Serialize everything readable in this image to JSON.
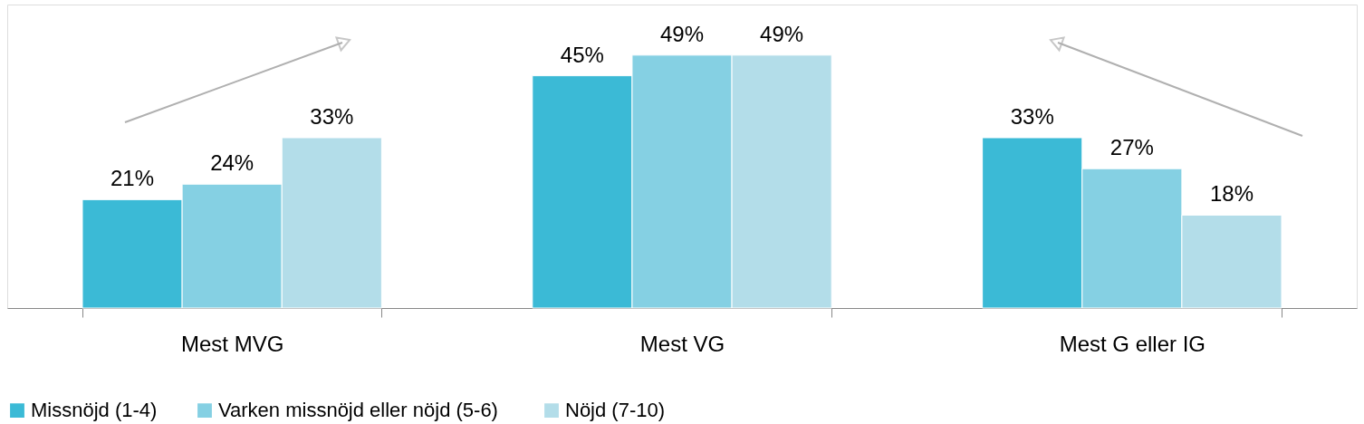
{
  "chart_data": {
    "type": "bar",
    "categories": [
      "Mest MVG",
      "Mest VG",
      "Mest G eller IG"
    ],
    "series": [
      {
        "name": "Missnöjd (1-4)",
        "color": "#3bbad6",
        "values": [
          21,
          45,
          33
        ],
        "value_labels": [
          "21%",
          "45%",
          "33%"
        ]
      },
      {
        "name": "Varken  missnöjd eller nöjd (5-6)",
        "color": "#85d0e3",
        "values": [
          24,
          49,
          27
        ],
        "value_labels": [
          "24%",
          "49%",
          "27%"
        ]
      },
      {
        "name": "Nöjd (7-10)",
        "color": "#b3dde9",
        "values": [
          33,
          49,
          18
        ],
        "value_labels": [
          "33%",
          "49%",
          "18%"
        ]
      }
    ],
    "legend": "bottom",
    "grid": false,
    "tick_labels": "x"
  }
}
